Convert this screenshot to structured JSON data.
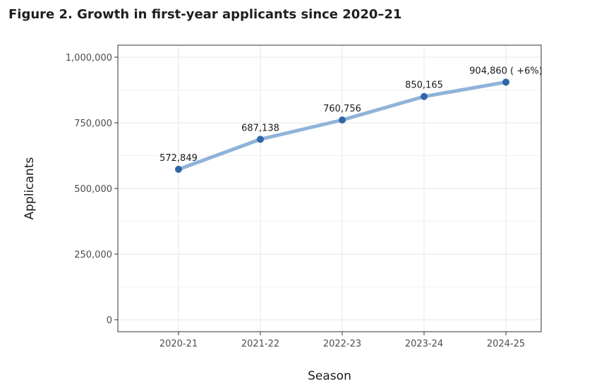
{
  "figure_title": "Figure 2. Growth in first-year applicants since 2020–21",
  "chart_data": {
    "type": "line",
    "categories": [
      "2020-21",
      "2021-22",
      "2022-23",
      "2023-24",
      "2024-25"
    ],
    "values": [
      572849,
      687138,
      760756,
      850165,
      904860
    ],
    "data_labels": [
      "572,849",
      "687,138",
      "760,756",
      "850,165",
      "904,860 ( +6%)"
    ],
    "xlabel": "Season",
    "ylabel": "Applicants",
    "ylim": [
      0,
      1000000
    ],
    "yticks": [
      0,
      250000,
      500000,
      750000,
      1000000
    ],
    "ytick_labels": [
      "0",
      "250,000",
      "500,000",
      "750,000",
      "1,000,000"
    ],
    "grid": true,
    "colors": {
      "line": "#8fb3da",
      "point": "#2f66a8",
      "grid": "#ebebeb",
      "frame": "#333333"
    }
  }
}
